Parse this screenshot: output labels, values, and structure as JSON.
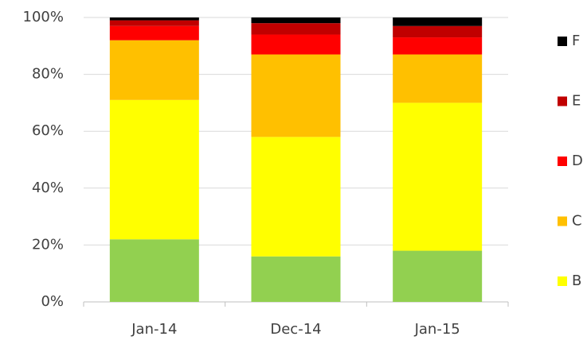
{
  "chart_data": {
    "type": "stacked-bar-100",
    "categories": [
      "Jan-14",
      "Dec-14",
      "Jan-15"
    ],
    "series": [
      {
        "name": null,
        "color": "#92d050",
        "values": [
          22,
          16,
          18
        ]
      },
      {
        "name": "B",
        "color": "#ffff00",
        "values": [
          49,
          42,
          52
        ]
      },
      {
        "name": "C",
        "color": "#ffc000",
        "values": [
          21,
          29,
          17
        ]
      },
      {
        "name": "D",
        "color": "#ff0000",
        "values": [
          5,
          7,
          6
        ]
      },
      {
        "name": "E",
        "color": "#c00000",
        "values": [
          2,
          4,
          4
        ]
      },
      {
        "name": "F",
        "color": "#000000",
        "values": [
          1,
          2,
          3
        ]
      }
    ],
    "ylim": [
      0,
      100
    ],
    "yticks": [
      {
        "value": 0,
        "label": "0%"
      },
      {
        "value": 20,
        "label": "20%"
      },
      {
        "value": 40,
        "label": "40%"
      },
      {
        "value": 60,
        "label": "60%"
      },
      {
        "value": 80,
        "label": "80%"
      },
      {
        "value": 100,
        "label": "100%"
      }
    ],
    "grid": true,
    "legend": "right"
  }
}
